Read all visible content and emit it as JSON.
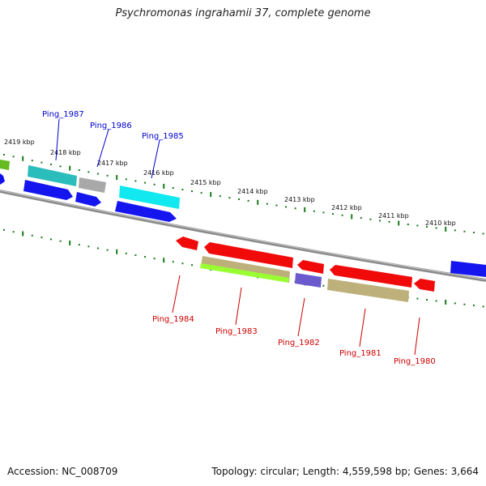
{
  "title": "Psychromonas ingrahamii 37, complete genome",
  "footer": {
    "accession": "Accession: NC_008709",
    "stats": "Topology: circular; Length: 4,559,598 bp; Genes: 3,664"
  },
  "colors": {
    "forward_label": "#0000cc",
    "reverse_label": "#cc0000",
    "backbone": "#808080",
    "ruler": "#1a7a1a"
  },
  "ruler_labels": [
    "2419 kbp",
    "2418 kbp",
    "2417 kbp",
    "2416 kbp",
    "2415 kbp",
    "2414 kbp",
    "2413 kbp",
    "2412 kbp",
    "2411 kbp",
    "2410 kbp"
  ],
  "forward_genes": [
    {
      "label": "Ping_1987"
    },
    {
      "label": "Ping_1986"
    },
    {
      "label": "Ping_1985"
    }
  ],
  "reverse_genes": [
    {
      "label": "Ping_1984"
    },
    {
      "label": "Ping_1983"
    },
    {
      "label": "Ping_1982"
    },
    {
      "label": "Ping_1981"
    },
    {
      "label": "Ping_1980"
    }
  ]
}
